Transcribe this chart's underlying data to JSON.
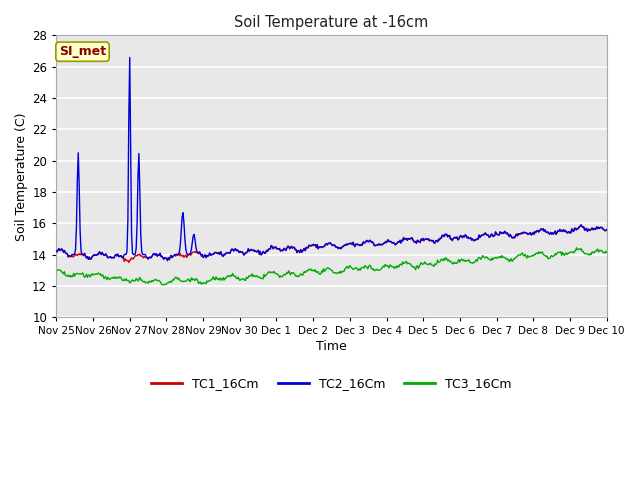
{
  "title": "Soil Temperature at -16cm",
  "xlabel": "Time",
  "ylabel": "Soil Temperature (C)",
  "ylim": [
    10,
    28
  ],
  "yticks": [
    10,
    12,
    14,
    16,
    18,
    20,
    22,
    24,
    26,
    28
  ],
  "fig_bg_color": "#ffffff",
  "plot_bg_color": "#e8e8e8",
  "grid_color": "#ffffff",
  "tc1_color": "#cc0000",
  "tc2_color": "#0000dd",
  "tc3_color": "#00aa00",
  "annotation_text": "SI_met",
  "annotation_bg": "#ffffcc",
  "annotation_fg": "#880000",
  "annotation_edge": "#999900",
  "num_points": 600,
  "xtick_labels": [
    "Nov 25",
    "Nov 26",
    "Nov 27",
    "Nov 28",
    "Nov 29",
    "Nov 30",
    "Dec 1",
    "Dec 2",
    "Dec 3",
    "Dec 4",
    "Dec 5",
    "Dec 6",
    "Dec 7",
    "Dec 8",
    "Dec 9",
    "Dec 10"
  ],
  "legend_labels": [
    "TC1_16Cm",
    "TC2_16Cm",
    "TC3_16Cm"
  ]
}
